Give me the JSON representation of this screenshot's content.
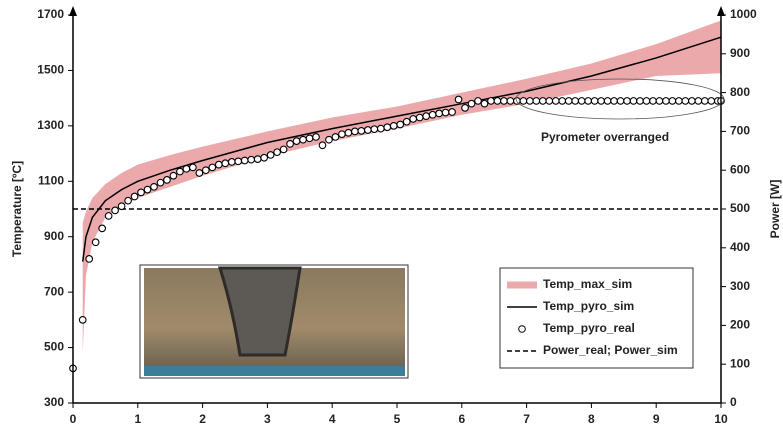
{
  "chart_data": {
    "type": "line",
    "xlabel": "",
    "ylabel": "Temperature [ºC]",
    "y2label": "Power [W]",
    "annotation": "Pyrometer overranged",
    "xlim": [
      0,
      10
    ],
    "xticks": [
      0,
      1,
      2,
      3,
      4,
      5,
      6,
      7,
      8,
      9,
      10
    ],
    "ylim": [
      300,
      1700
    ],
    "yticks": [
      300,
      500,
      700,
      900,
      1100,
      1300,
      1500,
      1700
    ],
    "y2lim": [
      0,
      1000
    ],
    "y2ticks": [
      0,
      100,
      200,
      300,
      400,
      500,
      600,
      700,
      800,
      900,
      1000
    ],
    "series": [
      {
        "name": "Temp_max_sim",
        "style": "band",
        "color": "#eba9ab",
        "x": [
          0.15,
          0.2,
          0.3,
          0.5,
          0.75,
          1,
          1.5,
          2,
          3,
          4,
          5,
          6,
          7,
          8,
          9,
          10
        ],
        "upper": [
          950,
          990,
          1040,
          1090,
          1130,
          1160,
          1195,
          1225,
          1280,
          1330,
          1370,
          1420,
          1470,
          1525,
          1595,
          1680
        ],
        "lower": [
          480,
          760,
          880,
          970,
          1010,
          1040,
          1080,
          1120,
          1190,
          1245,
          1290,
          1340,
          1380,
          1430,
          1480,
          1490
        ]
      },
      {
        "name": "Temp_pyro_sim",
        "style": "line",
        "color": "#000000",
        "x": [
          0.15,
          0.2,
          0.3,
          0.5,
          0.75,
          1,
          1.5,
          2,
          3,
          4,
          5,
          6,
          7,
          8,
          9,
          10
        ],
        "values": [
          810,
          900,
          970,
          1030,
          1070,
          1100,
          1140,
          1175,
          1240,
          1290,
          1335,
          1380,
          1425,
          1480,
          1545,
          1620
        ]
      },
      {
        "name": "Temp_pyro_real",
        "style": "markers",
        "color": "#000000",
        "x": [
          0,
          0.15,
          0.25,
          0.35,
          0.45,
          0.55,
          0.65,
          0.75,
          0.85,
          0.95,
          1.05,
          1.15,
          1.25,
          1.35,
          1.45,
          1.55,
          1.65,
          1.75,
          1.85,
          1.95,
          2.05,
          2.15,
          2.25,
          2.35,
          2.45,
          2.55,
          2.65,
          2.75,
          2.85,
          2.95,
          3.05,
          3.15,
          3.25,
          3.35,
          3.45,
          3.55,
          3.65,
          3.75,
          3.85,
          3.95,
          4.05,
          4.15,
          4.25,
          4.35,
          4.45,
          4.55,
          4.65,
          4.75,
          4.85,
          4.95,
          5.05,
          5.15,
          5.25,
          5.35,
          5.45,
          5.55,
          5.65,
          5.75,
          5.85,
          5.95,
          6.05,
          6.15,
          6.25,
          6.35,
          6.45,
          6.55,
          6.65,
          6.75,
          6.85,
          6.95,
          7.05,
          7.15,
          7.25,
          7.35,
          7.45,
          7.55,
          7.65,
          7.75,
          7.85,
          7.95,
          8.05,
          8.15,
          8.25,
          8.35,
          8.45,
          8.55,
          8.65,
          8.75,
          8.85,
          8.95,
          9.05,
          9.15,
          9.25,
          9.35,
          9.45,
          9.55,
          9.65,
          9.75,
          9.85,
          9.95,
          10
        ],
        "values": [
          425,
          600,
          820,
          880,
          930,
          975,
          995,
          1010,
          1030,
          1045,
          1060,
          1070,
          1080,
          1095,
          1105,
          1120,
          1135,
          1145,
          1150,
          1130,
          1140,
          1150,
          1160,
          1165,
          1170,
          1172,
          1175,
          1178,
          1180,
          1185,
          1195,
          1205,
          1215,
          1235,
          1245,
          1250,
          1255,
          1260,
          1230,
          1250,
          1260,
          1270,
          1275,
          1280,
          1282,
          1285,
          1288,
          1290,
          1295,
          1300,
          1305,
          1315,
          1325,
          1330,
          1335,
          1340,
          1345,
          1348,
          1350,
          1395,
          1365,
          1380,
          1390,
          1380,
          1390,
          1390,
          1390,
          1390,
          1390,
          1390,
          1390,
          1390,
          1390,
          1390,
          1390,
          1390,
          1390,
          1390,
          1390,
          1390,
          1390,
          1390,
          1390,
          1390,
          1390,
          1390,
          1390,
          1390,
          1390,
          1390,
          1390,
          1390,
          1390,
          1390,
          1390,
          1390,
          1390,
          1390,
          1390,
          1390,
          1390
        ]
      },
      {
        "name": "Power_real; Power_sim",
        "style": "dashed",
        "color": "#000000",
        "axis": "y2",
        "x": [
          0,
          10
        ],
        "values": [
          500,
          500
        ]
      }
    ]
  }
}
